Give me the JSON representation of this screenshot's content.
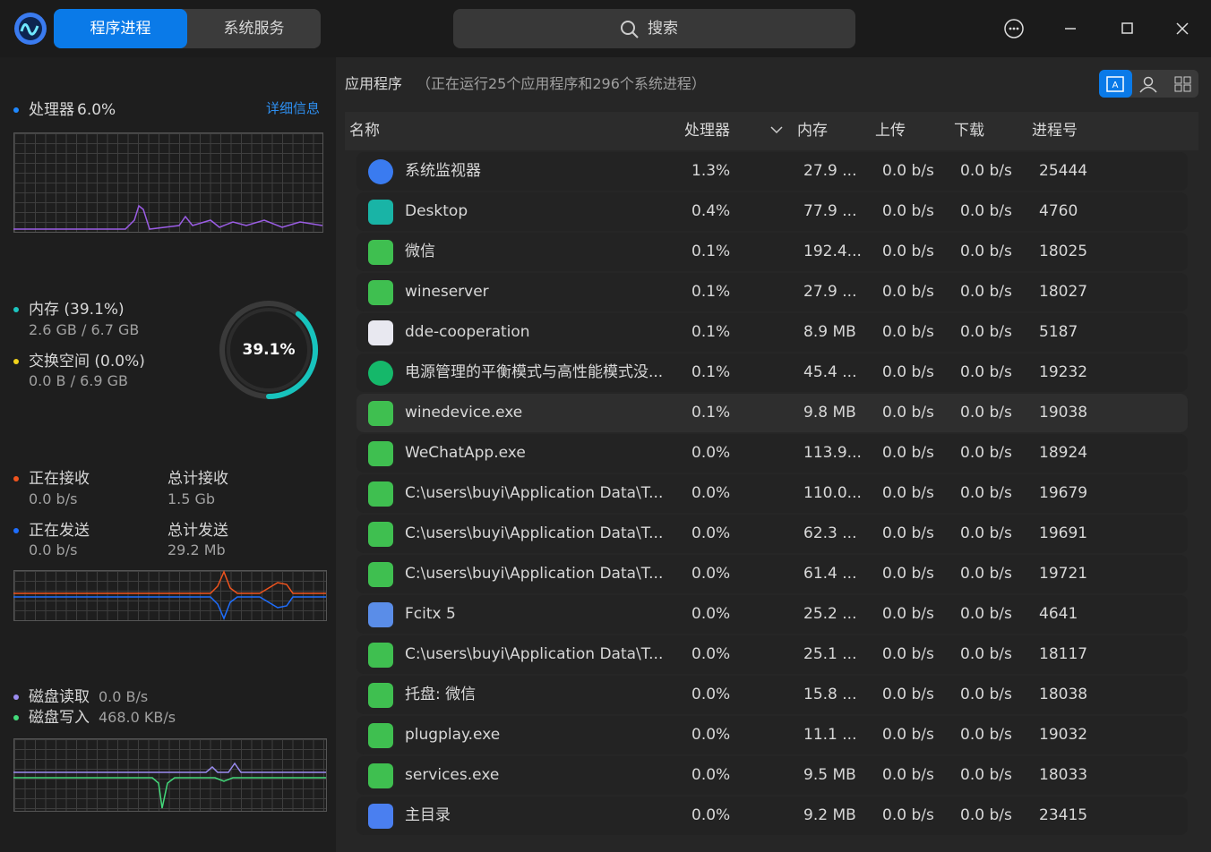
{
  "tabs": [
    "程序进程",
    "系统服务"
  ],
  "search": "搜索",
  "sidebar": {
    "cpu": {
      "label": "处理器",
      "value": "6.0%",
      "details": "详细信息"
    },
    "memory": {
      "label": "内存 (39.1%)",
      "usage": "2.6 GB / 6.7 GB",
      "percent": 39.1,
      "percent_label": "39.1%"
    },
    "swap": {
      "label": "交换空间 (0.0%)",
      "usage": "0.0 B / 6.9 GB"
    },
    "network": {
      "recv_label": "正在接收",
      "recv": "0.0 b/s",
      "total_recv_label": "总计接收",
      "total_recv": "1.5 Gb",
      "send_label": "正在发送",
      "send": "0.0 b/s",
      "total_send_label": "总计发送",
      "total_send": "29.2 Mb"
    },
    "disk": {
      "read_label": "磁盘读取",
      "read": "0.0 B/s",
      "write_label": "磁盘写入",
      "write": "468.0 KB/s"
    }
  },
  "main": {
    "title": "应用程序",
    "subtitle": "（正在运行25个应用程序和296个系统进程）",
    "columns": [
      "名称",
      "处理器",
      "内存",
      "上传",
      "下载",
      "进程号"
    ],
    "rows": [
      [
        "系统监视器",
        "1.3%",
        "27.9 ...",
        "0.0 b/s",
        "0.0 b/s",
        "25444"
      ],
      [
        "Desktop",
        "0.4%",
        "77.9 ...",
        "0.0 b/s",
        "0.0 b/s",
        "4760"
      ],
      [
        "微信",
        "0.1%",
        "192.4...",
        "0.0 b/s",
        "0.0 b/s",
        "18025"
      ],
      [
        "wineserver",
        "0.1%",
        "27.9 ...",
        "0.0 b/s",
        "0.0 b/s",
        "18027"
      ],
      [
        "dde-cooperation",
        "0.1%",
        "8.9 MB",
        "0.0 b/s",
        "0.0 b/s",
        "5187"
      ],
      [
        "电源管理的平衡模式与高性能模式没...",
        "0.1%",
        "45.4 ...",
        "0.0 b/s",
        "0.0 b/s",
        "19232"
      ],
      [
        "winedevice.exe",
        "0.1%",
        "9.8 MB",
        "0.0 b/s",
        "0.0 b/s",
        "19038"
      ],
      [
        "WeChatApp.exe",
        "0.0%",
        "113.9...",
        "0.0 b/s",
        "0.0 b/s",
        "18924"
      ],
      [
        "C:\\users\\buyi\\Application Data\\T...",
        "0.0%",
        "110.0...",
        "0.0 b/s",
        "0.0 b/s",
        "19679"
      ],
      [
        "C:\\users\\buyi\\Application Data\\T...",
        "0.0%",
        "62.3 ...",
        "0.0 b/s",
        "0.0 b/s",
        "19691"
      ],
      [
        "C:\\users\\buyi\\Application Data\\T...",
        "0.0%",
        "61.4 ...",
        "0.0 b/s",
        "0.0 b/s",
        "19721"
      ],
      [
        "Fcitx 5",
        "0.0%",
        "25.2 ...",
        "0.0 b/s",
        "0.0 b/s",
        "4641"
      ],
      [
        "C:\\users\\buyi\\Application Data\\T...",
        "0.0%",
        "25.1 ...",
        "0.0 b/s",
        "0.0 b/s",
        "18117"
      ],
      [
        "托盘: 微信",
        "0.0%",
        "15.8 ...",
        "0.0 b/s",
        "0.0 b/s",
        "18038"
      ],
      [
        "plugplay.exe",
        "0.0%",
        "11.1 ...",
        "0.0 b/s",
        "0.0 b/s",
        "19032"
      ],
      [
        "services.exe",
        "0.0%",
        "9.5 MB",
        "0.0 b/s",
        "0.0 b/s",
        "18033"
      ],
      [
        "主目录",
        "0.0%",
        "9.2 MB",
        "0.0 b/s",
        "0.0 b/s",
        "23415"
      ]
    ]
  }
}
